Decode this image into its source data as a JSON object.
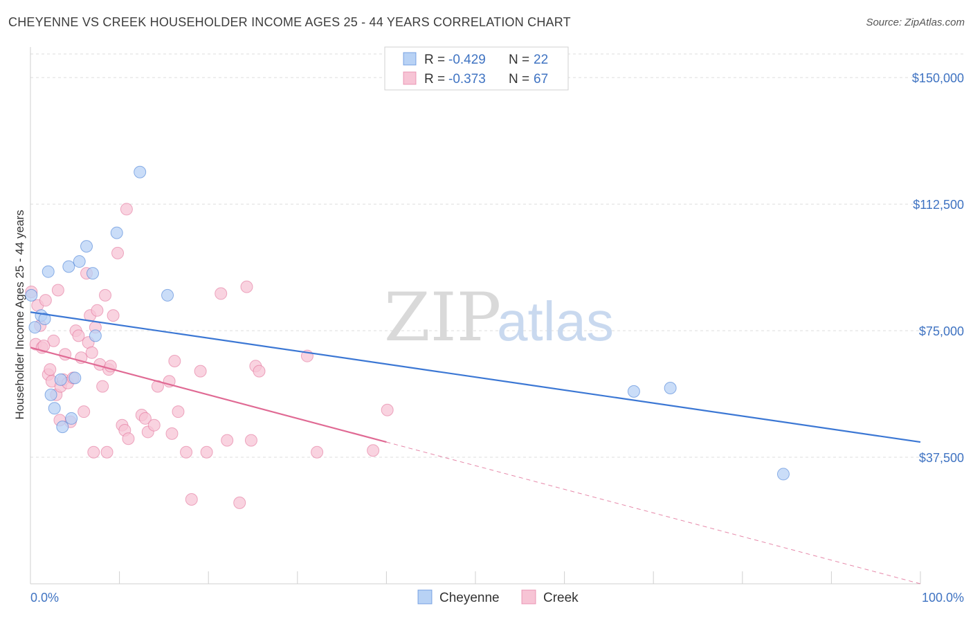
{
  "header": {
    "title": "CHEYENNE VS CREEK HOUSEHOLDER INCOME AGES 25 - 44 YEARS CORRELATION CHART",
    "source": "Source: ZipAtlas.com"
  },
  "watermark": {
    "zip": "ZIP",
    "atlas": "atlas"
  },
  "colors": {
    "cheyenne": "#3b77d4",
    "cheyenne_fill": "#b8d2f5",
    "creek": "#e06a94",
    "creek_fill": "#f7c4d5",
    "tick_label": "#3f73c2",
    "grid": "#dddddd"
  },
  "chart_data": {
    "type": "scatter",
    "title": "CHEYENNE VS CREEK HOUSEHOLDER INCOME AGES 25 - 44 YEARS CORRELATION CHART",
    "xlabel": "",
    "ylabel": "Householder Income Ages 25 - 44 years",
    "xlim": [
      0,
      100
    ],
    "ylim": [
      0,
      157000
    ],
    "x_tick_labels": {
      "min": "0.0%",
      "max": "100.0%"
    },
    "y_ticks": [
      {
        "value": 37500,
        "label": "$37,500"
      },
      {
        "value": 75000,
        "label": "$75,000"
      },
      {
        "value": 112500,
        "label": "$112,500"
      },
      {
        "value": 150000,
        "label": "$150,000"
      }
    ],
    "grid": true,
    "legend_position": "top-center",
    "legend": [
      {
        "r_label": "R = ",
        "r": "-0.429",
        "n_label": "N = ",
        "n": "22"
      },
      {
        "r_label": "R = ",
        "r": "-0.373",
        "n_label": "N = ",
        "n": "67"
      }
    ],
    "bottom_legend": [
      "Cheyenne",
      "Creek"
    ],
    "series": [
      {
        "name": "Cheyenne",
        "points": [
          [
            0.1,
            85500
          ],
          [
            0.5,
            76000
          ],
          [
            1.2,
            79500
          ],
          [
            1.6,
            78500
          ],
          [
            2.0,
            92500
          ],
          [
            2.3,
            56000
          ],
          [
            2.7,
            52000
          ],
          [
            3.4,
            60500
          ],
          [
            3.6,
            46500
          ],
          [
            4.3,
            94000
          ],
          [
            4.6,
            49000
          ],
          [
            5.0,
            61000
          ],
          [
            5.5,
            95500
          ],
          [
            6.3,
            100000
          ],
          [
            7.0,
            92000
          ],
          [
            7.3,
            73500
          ],
          [
            9.7,
            104000
          ],
          [
            12.3,
            122000
          ],
          [
            15.4,
            85500
          ],
          [
            67.8,
            57000
          ],
          [
            71.9,
            58000
          ],
          [
            84.6,
            32500
          ]
        ],
        "trend": {
          "x0": 0,
          "y0": 80500,
          "x1": 100,
          "y1": 42000
        }
      },
      {
        "name": "Creek",
        "points": [
          [
            0.1,
            86500
          ],
          [
            0.6,
            71000
          ],
          [
            0.8,
            82500
          ],
          [
            1.1,
            76500
          ],
          [
            1.3,
            70000
          ],
          [
            1.7,
            84000
          ],
          [
            2.0,
            62000
          ],
          [
            2.2,
            63500
          ],
          [
            2.4,
            60000
          ],
          [
            2.6,
            72000
          ],
          [
            2.9,
            56000
          ],
          [
            3.1,
            87000
          ],
          [
            3.4,
            58500
          ],
          [
            3.7,
            60500
          ],
          [
            3.9,
            68000
          ],
          [
            4.2,
            59500
          ],
          [
            4.5,
            48000
          ],
          [
            4.8,
            61000
          ],
          [
            5.1,
            75000
          ],
          [
            5.4,
            73500
          ],
          [
            5.7,
            67000
          ],
          [
            6.0,
            51000
          ],
          [
            6.3,
            92000
          ],
          [
            6.5,
            71500
          ],
          [
            6.7,
            79500
          ],
          [
            6.9,
            68500
          ],
          [
            7.1,
            39000
          ],
          [
            7.3,
            76000
          ],
          [
            7.5,
            81000
          ],
          [
            7.8,
            65000
          ],
          [
            8.1,
            58500
          ],
          [
            8.4,
            85500
          ],
          [
            8.6,
            39000
          ],
          [
            8.8,
            63500
          ],
          [
            9.0,
            64500
          ],
          [
            9.3,
            79500
          ],
          [
            9.8,
            98000
          ],
          [
            10.3,
            47000
          ],
          [
            10.6,
            45500
          ],
          [
            10.8,
            111000
          ],
          [
            11.0,
            43000
          ],
          [
            12.5,
            50000
          ],
          [
            12.9,
            49000
          ],
          [
            13.2,
            45000
          ],
          [
            13.9,
            47000
          ],
          [
            14.3,
            58500
          ],
          [
            15.6,
            60000
          ],
          [
            15.9,
            44500
          ],
          [
            16.2,
            66000
          ],
          [
            16.6,
            51000
          ],
          [
            17.5,
            39000
          ],
          [
            18.1,
            25000
          ],
          [
            19.1,
            63000
          ],
          [
            19.8,
            39000
          ],
          [
            21.4,
            86000
          ],
          [
            22.1,
            42500
          ],
          [
            23.5,
            24000
          ],
          [
            24.3,
            88000
          ],
          [
            24.8,
            42500
          ],
          [
            25.3,
            64500
          ],
          [
            25.7,
            63000
          ],
          [
            31.1,
            67500
          ],
          [
            32.2,
            39000
          ],
          [
            38.5,
            39500
          ],
          [
            40.1,
            51500
          ],
          [
            1.5,
            70500
          ],
          [
            3.3,
            48500
          ]
        ],
        "trend": {
          "x0": 0,
          "y0": 70000,
          "x1": 40,
          "y1": 42000
        },
        "trend_extension": {
          "x0": 40,
          "y0": 42000,
          "x1": 100,
          "y1": 0
        }
      }
    ]
  }
}
